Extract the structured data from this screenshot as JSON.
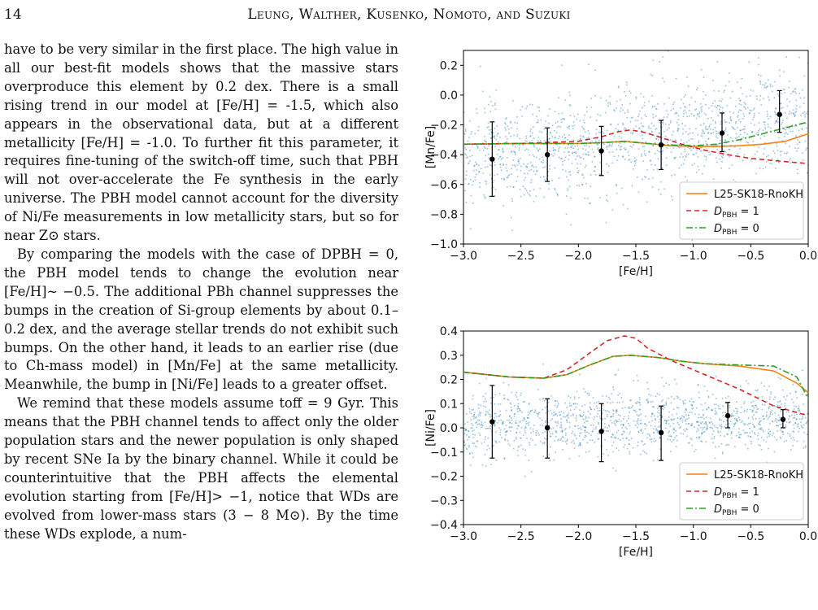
{
  "header": {
    "page_number": "14",
    "authors": "Leung, Walther, Kusenko, Nomoto, and Suzuki"
  },
  "text_column": {
    "paragraphs": [
      {
        "text": "have to be very similar in the first place. The high value in all our best-fit models shows that the massive stars overproduce this element by 0.2 dex. There is a small rising trend in our model at [Fe/H] = -1.5, which also appears in the observational data, but at a different metallicity [Fe/H] = -1.0. To further fit this parameter, it requires fine-tuning of the switch-off time, such that PBH will not over-accelerate the Fe synthesis in the early universe. The PBH model cannot account for the diversity of Ni/Fe measurements in low metallicity stars, but so for near Z⊙ stars."
      },
      {
        "text": "By comparing the models with the case of DPBH = 0, the PBH model tends to change the evolution near [Fe/H]∼ −0.5. The additional PBh channel suppresses the bumps in the creation of Si-group elements by about 0.1–0.2 dex, and the average stellar trends do not exhibit such bumps. On the other hand, it leads to an earlier rise (due to Ch-mass model) in [Mn/Fe] at the same metallicity. Meanwhile, the bump in [Ni/Fe] leads to a greater offset."
      },
      {
        "text": "We remind that these models assume toff = 9 Gyr. This means that the PBH channel tends to affect only the older population stars and the newer population is only shaped by recent SNe Ia by the binary channel. While it could be counterintuitive that the PBH affects the elemental evolution starting from [Fe/H]> −1, notice that WDs are evolved from lower-mass stars (3 − 8 M⊙). By the time these WDs explode, a num-"
      }
    ]
  },
  "colors": {
    "scatter": "#1f77b4",
    "L25": "#ff7f0e",
    "D1": "#d62728",
    "D0": "#2ca02c",
    "errorbar": "#000000"
  },
  "chart_data": [
    {
      "type": "line",
      "xlabel": "[Fe/H]",
      "ylabel": "[Mn/Fe]",
      "xlim": [
        -3.0,
        0.0
      ],
      "ylim": [
        -1.0,
        0.3
      ],
      "xticks": [
        "−3.0",
        "−2.5",
        "−2.0",
        "−1.5",
        "−1.0",
        "−0.5",
        "0.0"
      ],
      "yticks": [
        "−1.0",
        "−0.8",
        "−0.6",
        "−0.4",
        "−0.2",
        "0.0",
        "0.2"
      ],
      "ytick_values": [
        -1.0,
        -0.8,
        -0.6,
        -0.4,
        -0.2,
        0.0,
        0.2
      ],
      "xtick_values": [
        -3.0,
        -2.5,
        -2.0,
        -1.5,
        -1.0,
        -0.5,
        0.0
      ],
      "legend_position": "lower-right",
      "series": [
        {
          "name": "L25-SK18-RnoKH",
          "style": "solid",
          "x": [
            -3.0,
            -2.5,
            -2.0,
            -1.8,
            -1.6,
            -1.4,
            -1.2,
            -1.0,
            -0.8,
            -0.6,
            -0.4,
            -0.2,
            0.0
          ],
          "y": [
            -0.33,
            -0.325,
            -0.325,
            -0.32,
            -0.31,
            -0.325,
            -0.34,
            -0.345,
            -0.345,
            -0.34,
            -0.33,
            -0.31,
            -0.26
          ]
        },
        {
          "name": "D_PBH = 1",
          "style": "dashed",
          "x": [
            -3.0,
            -2.5,
            -2.0,
            -1.8,
            -1.65,
            -1.55,
            -1.45,
            -1.3,
            -1.1,
            -0.9,
            -0.7,
            -0.5,
            -0.3,
            0.0
          ],
          "y": [
            -0.33,
            -0.325,
            -0.31,
            -0.28,
            -0.245,
            -0.235,
            -0.245,
            -0.28,
            -0.33,
            -0.37,
            -0.4,
            -0.425,
            -0.44,
            -0.46
          ]
        },
        {
          "name": "D_PBH = 0",
          "style": "dashdot",
          "x": [
            -3.0,
            -2.5,
            -2.0,
            -1.8,
            -1.6,
            -1.4,
            -1.2,
            -1.0,
            -0.8,
            -0.6,
            -0.4,
            -0.2,
            0.0
          ],
          "y": [
            -0.33,
            -0.325,
            -0.325,
            -0.32,
            -0.31,
            -0.325,
            -0.335,
            -0.34,
            -0.33,
            -0.3,
            -0.26,
            -0.22,
            -0.18
          ]
        }
      ],
      "errorbars": {
        "x": [
          -2.75,
          -2.27,
          -1.8,
          -1.28,
          -0.75,
          -0.25
        ],
        "y": [
          -0.43,
          -0.4,
          -0.375,
          -0.335,
          -0.255,
          -0.13
        ],
        "lower": [
          -0.68,
          -0.58,
          -0.54,
          -0.5,
          -0.38,
          -0.25
        ],
        "upper": [
          -0.18,
          -0.22,
          -0.21,
          -0.17,
          -0.12,
          0.03
        ]
      },
      "scatter_summary": {
        "x_range": [
          -3.0,
          0.0
        ],
        "y_mean_start": -0.42,
        "y_mean_end": -0.15,
        "spread": 0.35
      }
    },
    {
      "type": "line",
      "xlabel": "[Fe/H]",
      "ylabel": "[Ni/Fe]",
      "xlim": [
        -3.0,
        0.0
      ],
      "ylim": [
        -0.4,
        0.4
      ],
      "xticks": [
        "−3.0",
        "−2.5",
        "−2.0",
        "−1.5",
        "−1.0",
        "−0.5",
        "0.0"
      ],
      "yticks": [
        "−0.4",
        "−0.3",
        "−0.2",
        "−0.1",
        "0.0",
        "0.1",
        "0.2",
        "0.3",
        "0.4"
      ],
      "ytick_values": [
        -0.4,
        -0.3,
        -0.2,
        -0.1,
        0.0,
        0.1,
        0.2,
        0.3,
        0.4
      ],
      "xtick_values": [
        -3.0,
        -2.5,
        -2.0,
        -1.5,
        -1.0,
        -0.5,
        0.0
      ],
      "legend_position": "lower-right",
      "series": [
        {
          "name": "L25-SK18-RnoKH",
          "style": "solid",
          "x": [
            -3.0,
            -2.6,
            -2.3,
            -2.1,
            -1.9,
            -1.7,
            -1.55,
            -1.3,
            -1.1,
            -0.9,
            -0.6,
            -0.3,
            -0.1,
            0.0
          ],
          "y": [
            0.23,
            0.21,
            0.205,
            0.22,
            0.26,
            0.295,
            0.3,
            0.29,
            0.275,
            0.265,
            0.255,
            0.235,
            0.185,
            0.145
          ]
        },
        {
          "name": "D_PBH = 1",
          "style": "dashed",
          "x": [
            -3.0,
            -2.6,
            -2.3,
            -2.1,
            -1.9,
            -1.75,
            -1.6,
            -1.5,
            -1.4,
            -1.2,
            -0.9,
            -0.6,
            -0.3,
            0.0
          ],
          "y": [
            0.23,
            0.21,
            0.205,
            0.24,
            0.31,
            0.36,
            0.38,
            0.37,
            0.33,
            0.28,
            0.22,
            0.16,
            0.09,
            0.05
          ]
        },
        {
          "name": "D_PBH = 0",
          "style": "dashdot",
          "x": [
            -3.0,
            -2.6,
            -2.3,
            -2.1,
            -1.9,
            -1.7,
            -1.55,
            -1.3,
            -1.1,
            -0.9,
            -0.6,
            -0.3,
            -0.1,
            0.0
          ],
          "y": [
            0.23,
            0.21,
            0.205,
            0.22,
            0.26,
            0.295,
            0.3,
            0.29,
            0.275,
            0.265,
            0.26,
            0.255,
            0.21,
            0.12
          ]
        }
      ],
      "errorbars": {
        "x": [
          -2.75,
          -2.27,
          -1.8,
          -1.28,
          -0.7,
          -0.22
        ],
        "y": [
          0.025,
          0.0,
          -0.015,
          -0.02,
          0.05,
          0.035
        ],
        "lower": [
          -0.125,
          -0.125,
          -0.14,
          -0.135,
          0.0,
          0.0
        ],
        "upper": [
          0.175,
          0.12,
          0.1,
          0.09,
          0.105,
          0.075
        ]
      },
      "scatter_summary": {
        "x_range": [
          -3.0,
          0.0
        ],
        "y_mean_start": 0.02,
        "y_mean_end": 0.04,
        "spread": 0.14
      }
    }
  ]
}
